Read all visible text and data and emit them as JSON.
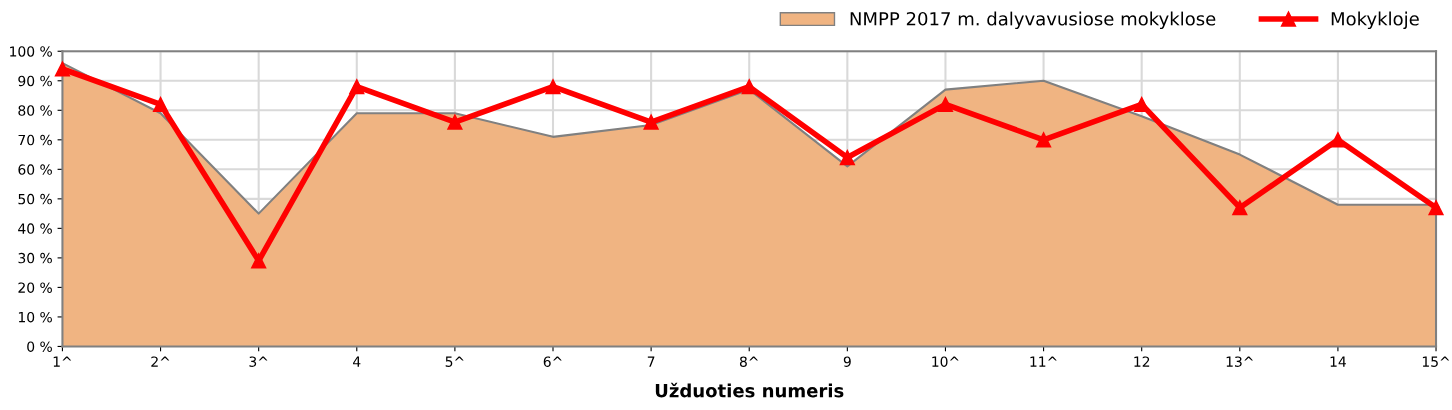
{
  "chart_data": {
    "type": "line",
    "xlabel": "Užduoties numeris",
    "categories": [
      "1^",
      "2^",
      "3^",
      "4",
      "5^",
      "6^",
      "7",
      "8^",
      "9",
      "10^",
      "11^",
      "12",
      "13^",
      "14",
      "15^"
    ],
    "series": [
      {
        "name": "NMPP 2017 m. dalyvavusiose mokyklose",
        "type": "area",
        "color": "#f0b482",
        "values": [
          96,
          79,
          45,
          79,
          79,
          71,
          75,
          87,
          61,
          87,
          90,
          78,
          65,
          48,
          48
        ]
      },
      {
        "name": "Mokykloje",
        "color": "#ff0000",
        "marker": "triangle",
        "values": [
          94,
          82,
          29,
          88,
          76,
          88,
          76,
          88,
          64,
          82,
          70,
          82,
          47,
          70,
          47
        ]
      }
    ],
    "ylim": [
      0,
      100
    ],
    "yticks": [
      {
        "value": 0,
        "label": "0 %"
      },
      {
        "value": 10,
        "label": "10 %"
      },
      {
        "value": 20,
        "label": "20 %"
      },
      {
        "value": 30,
        "label": "30 %"
      },
      {
        "value": 40,
        "label": "40 %"
      },
      {
        "value": 50,
        "label": "50 %"
      },
      {
        "value": 60,
        "label": "60 %"
      },
      {
        "value": 70,
        "label": "70 %"
      },
      {
        "value": 80,
        "label": "80 %"
      },
      {
        "value": 90,
        "label": "90 %"
      },
      {
        "value": 100,
        "label": "100 %"
      }
    ],
    "grid": true,
    "legend": "top right"
  }
}
